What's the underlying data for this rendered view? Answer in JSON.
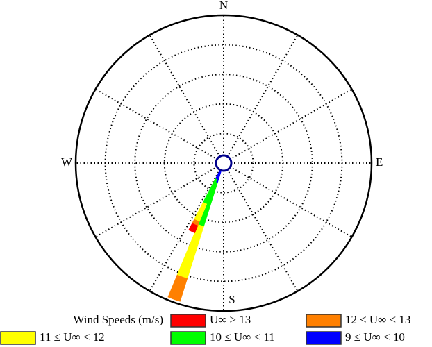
{
  "chart_data": {
    "type": "windrose",
    "compass_labels": [
      "N",
      "E",
      "S",
      "W"
    ],
    "directions": [
      200,
      205
    ],
    "series": [
      {
        "name": "9 ≤ U∞ < 10",
        "color": "#0000ff",
        "values": [
          1.4,
          1.2
        ]
      },
      {
        "name": "10 ≤ U∞ < 11",
        "color": "#00ff00",
        "values": [
          3.1,
          1.8
        ]
      },
      {
        "name": "11 ≤ U∞ < 12",
        "color": "#ffff00",
        "values": [
          3.7,
          1.3
        ]
      },
      {
        "name": "12 ≤ U∞ < 13",
        "color": "#ff8000",
        "values": [
          1.6,
          0.3
        ]
      },
      {
        "name": "U∞ ≥ 13",
        "color": "#ff0000",
        "values": [
          0,
          0.5
        ]
      }
    ],
    "rlim": [
      0,
      10
    ],
    "rticks": [
      2,
      4,
      6,
      8,
      10
    ],
    "grid": true,
    "legend_title": "Wind Speeds (m/s)"
  }
}
